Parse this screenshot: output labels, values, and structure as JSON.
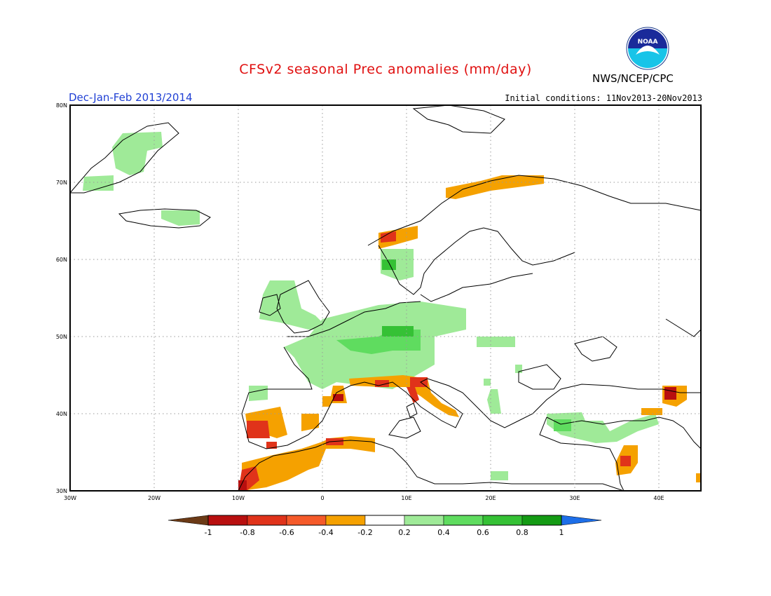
{
  "header": {
    "title": "CFSv2 seasonal Prec anomalies (mm/day)",
    "period": "Dec-Jan-Feb 2013/2014",
    "initial_conditions": "Initial conditions: 11Nov2013-20Nov2013",
    "organization": "NWS/NCEP/CPC",
    "logo_text": "NOAA"
  },
  "map": {
    "lon_range": [
      -30,
      45
    ],
    "lat_range": [
      30,
      80
    ],
    "lon_ticks": [
      "30W",
      "20W",
      "10W",
      "0",
      "10E",
      "20E",
      "30E",
      "40E"
    ],
    "lat_ticks": [
      "30N",
      "40N",
      "50N",
      "60N",
      "70N",
      "80N"
    ]
  },
  "colorbar": {
    "labels": [
      "-1",
      "-0.8",
      "-0.6",
      "-0.4",
      "-0.2",
      "0.2",
      "0.4",
      "0.6",
      "0.8",
      "1"
    ],
    "colors": [
      "#6b3a16",
      "#b80f0f",
      "#e0331a",
      "#f55a2a",
      "#f5a100",
      "#ffffff",
      "#9fea98",
      "#5fdc5f",
      "#35c135",
      "#149b14",
      "#1d6ee8"
    ]
  }
}
